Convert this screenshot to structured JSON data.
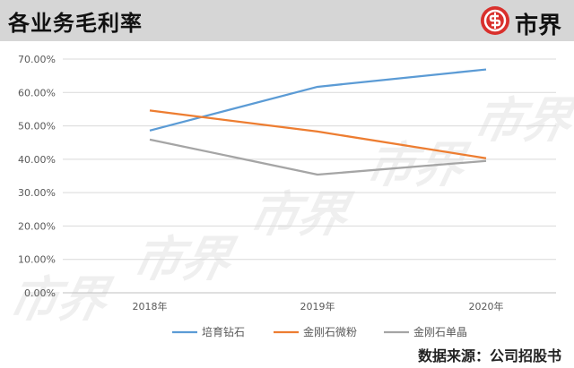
{
  "header": {
    "title": "各业务毛利率",
    "logo_text": "市界",
    "logo_icon": "s-circle-logo-icon",
    "logo_color": "#d9302c"
  },
  "watermark": {
    "text": "市界"
  },
  "chart_data": {
    "type": "line",
    "title": "",
    "xlabel": "",
    "ylabel": "",
    "categories": [
      "2018年",
      "2019年",
      "2020年"
    ],
    "yticks": [
      "0.00%",
      "10.00%",
      "20.00%",
      "30.00%",
      "40.00%",
      "50.00%",
      "60.00%",
      "70.00%"
    ],
    "ylim": [
      0,
      70
    ],
    "grid": true,
    "legend_position": "bottom",
    "series": [
      {
        "name": "培育钻石",
        "color": "#5b9bd5",
        "values": [
          48.6,
          61.7,
          66.9
        ]
      },
      {
        "name": "金刚石微粉",
        "color": "#ed7d31",
        "values": [
          54.6,
          48.3,
          40.3
        ]
      },
      {
        "name": "金刚石单晶",
        "color": "#a5a5a5",
        "values": [
          45.9,
          35.4,
          39.5
        ]
      }
    ]
  },
  "footer": {
    "source": "数据来源：公司招股书"
  }
}
